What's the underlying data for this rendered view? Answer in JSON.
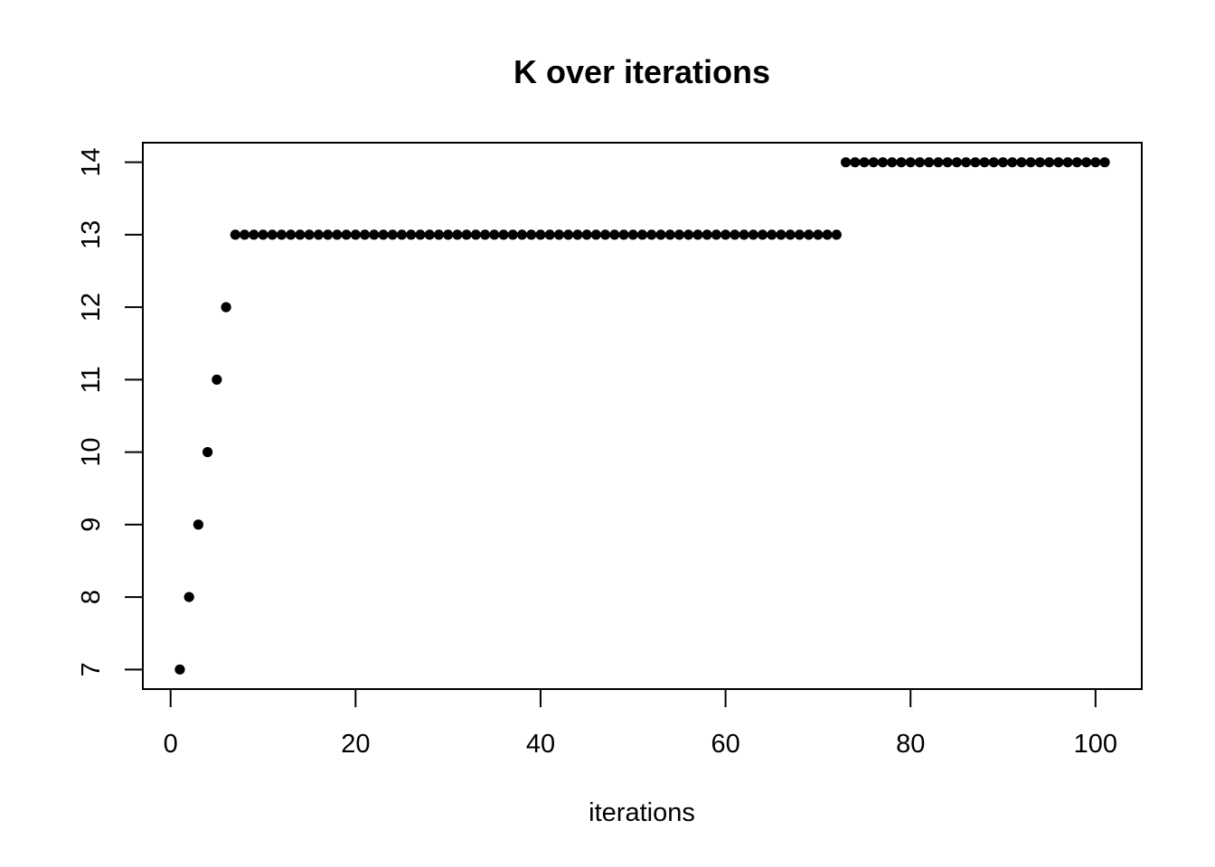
{
  "chart_data": {
    "type": "scatter",
    "title": "K over iterations",
    "xlabel": "iterations",
    "ylabel": "",
    "xlim": [
      -3,
      105
    ],
    "ylim": [
      6.73,
      14.27
    ],
    "xticks": [
      0,
      20,
      40,
      60,
      80,
      100
    ],
    "yticks": [
      7,
      8,
      9,
      10,
      11,
      12,
      13,
      14
    ],
    "marker_color": "#000000",
    "series": [
      {
        "name": "K",
        "x": [
          1,
          2,
          3,
          4,
          5,
          6,
          7,
          8,
          9,
          10,
          11,
          12,
          13,
          14,
          15,
          16,
          17,
          18,
          19,
          20,
          21,
          22,
          23,
          24,
          25,
          26,
          27,
          28,
          29,
          30,
          31,
          32,
          33,
          34,
          35,
          36,
          37,
          38,
          39,
          40,
          41,
          42,
          43,
          44,
          45,
          46,
          47,
          48,
          49,
          50,
          51,
          52,
          53,
          54,
          55,
          56,
          57,
          58,
          59,
          60,
          61,
          62,
          63,
          64,
          65,
          66,
          67,
          68,
          69,
          70,
          71,
          72,
          73,
          74,
          75,
          76,
          77,
          78,
          79,
          80,
          81,
          82,
          83,
          84,
          85,
          86,
          87,
          88,
          89,
          90,
          91,
          92,
          93,
          94,
          95,
          96,
          97,
          98,
          99,
          100,
          101
        ],
        "y": [
          7,
          8,
          9,
          10,
          11,
          12,
          13,
          13,
          13,
          13,
          13,
          13,
          13,
          13,
          13,
          13,
          13,
          13,
          13,
          13,
          13,
          13,
          13,
          13,
          13,
          13,
          13,
          13,
          13,
          13,
          13,
          13,
          13,
          13,
          13,
          13,
          13,
          13,
          13,
          13,
          13,
          13,
          13,
          13,
          13,
          13,
          13,
          13,
          13,
          13,
          13,
          13,
          13,
          13,
          13,
          13,
          13,
          13,
          13,
          13,
          13,
          13,
          13,
          13,
          13,
          13,
          13,
          13,
          13,
          13,
          13,
          13,
          14,
          14,
          14,
          14,
          14,
          14,
          14,
          14,
          14,
          14,
          14,
          14,
          14,
          14,
          14,
          14,
          14,
          14,
          14,
          14,
          14,
          14,
          14,
          14,
          14,
          14,
          14,
          14,
          14
        ]
      }
    ]
  }
}
